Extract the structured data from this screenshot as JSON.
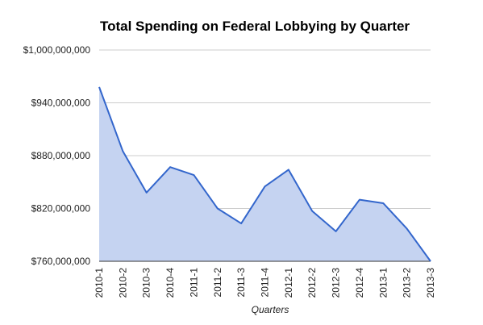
{
  "chart_data": {
    "type": "area",
    "title": "Total Spending on Federal Lobbying by Quarter",
    "xlabel": "Quarters",
    "ylabel": "",
    "categories": [
      "2010-1",
      "2010-2",
      "2010-3",
      "2010-4",
      "2011-1",
      "2011-2",
      "2011-3",
      "2011-4",
      "2012-1",
      "2012-2",
      "2012-3",
      "2012-4",
      "2013-1",
      "2013-2",
      "2013-3"
    ],
    "series": [
      {
        "values": [
          958000000,
          885000000,
          838000000,
          867000000,
          858000000,
          820000000,
          803000000,
          845000000,
          864000000,
          817000000,
          794000000,
          830000000,
          826000000,
          797000000,
          760000000
        ]
      }
    ],
    "ylim": [
      760000000,
      1000000000
    ],
    "yticks": [
      760000000,
      820000000,
      880000000,
      940000000,
      1000000000
    ],
    "ytick_labels": [
      "$760,000,000",
      "$820,000,000",
      "$880,000,000",
      "$940,000,000",
      "$1,000,000,000"
    ],
    "grid": true,
    "legend": "none",
    "colors": {
      "line": "#3366cc",
      "fill": "#c5d3f1"
    }
  }
}
